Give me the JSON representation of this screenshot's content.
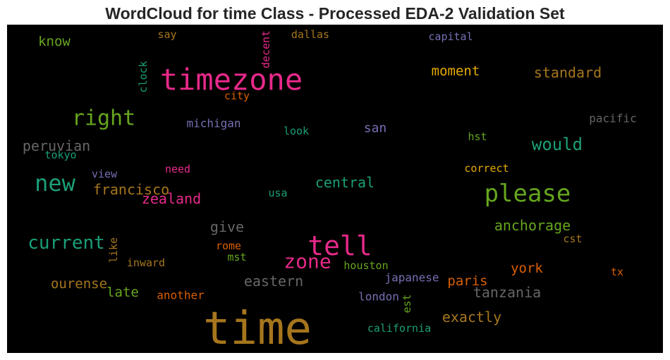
{
  "chart_data": {
    "type": "wordcloud",
    "title": "WordCloud for time Class - Processed EDA-2 Validation Set",
    "background": "#000000",
    "words": [
      {
        "text": "time",
        "size": 64,
        "color": "#a6761d"
      },
      {
        "text": "timezone",
        "size": 42,
        "color": "#e7298a"
      },
      {
        "text": "tell",
        "size": 38,
        "color": "#e7298a"
      },
      {
        "text": "please",
        "size": 34,
        "color": "#66a61e"
      },
      {
        "text": "new",
        "size": 32,
        "color": "#1b9e77"
      },
      {
        "text": "right",
        "size": 30,
        "color": "#66a61e"
      },
      {
        "text": "zone",
        "size": 28,
        "color": "#e7298a"
      },
      {
        "text": "current",
        "size": 26,
        "color": "#1b9e77"
      },
      {
        "text": "would",
        "size": 24,
        "color": "#1b9e77"
      },
      {
        "text": "peruvian",
        "size": 20,
        "color": "#666666"
      },
      {
        "text": "francisco",
        "size": 20,
        "color": "#a6761d"
      },
      {
        "text": "zealand",
        "size": 20,
        "color": "#e7298a"
      },
      {
        "text": "central",
        "size": 20,
        "color": "#1b9e77"
      },
      {
        "text": "anchorage",
        "size": 20,
        "color": "#66a61e"
      },
      {
        "text": "standard",
        "size": 20,
        "color": "#a6761d"
      },
      {
        "text": "exactly",
        "size": 20,
        "color": "#a6761d"
      },
      {
        "text": "eastern",
        "size": 20,
        "color": "#666666"
      },
      {
        "text": "tanzania",
        "size": 20,
        "color": "#666666"
      },
      {
        "text": "give",
        "size": 20,
        "color": "#666666"
      },
      {
        "text": "know",
        "size": 19,
        "color": "#66a61e"
      },
      {
        "text": "moment",
        "size": 19,
        "color": "#e6ab02"
      },
      {
        "text": "late",
        "size": 19,
        "color": "#66a61e"
      },
      {
        "text": "ourense",
        "size": 19,
        "color": "#a6761d"
      },
      {
        "text": "york",
        "size": 19,
        "color": "#d95f02"
      },
      {
        "text": "paris",
        "size": 19,
        "color": "#d95f02"
      },
      {
        "text": "san",
        "size": 18,
        "color": "#7570b3"
      },
      {
        "text": "michigan",
        "size": 16,
        "color": "#7570b3"
      },
      {
        "text": "pacific",
        "size": 16,
        "color": "#666666"
      },
      {
        "text": "japanese",
        "size": 16,
        "color": "#7570b3"
      },
      {
        "text": "london",
        "size": 16,
        "color": "#7570b3"
      },
      {
        "text": "another",
        "size": 16,
        "color": "#d95f02"
      },
      {
        "text": "houston",
        "size": 15,
        "color": "#66a61e"
      },
      {
        "text": "california",
        "size": 15,
        "color": "#1b9e77"
      },
      {
        "text": "capital",
        "size": 15,
        "color": "#7570b3"
      },
      {
        "text": "dallas",
        "size": 15,
        "color": "#a6761d"
      },
      {
        "text": "say",
        "size": 15,
        "color": "#a6761d"
      },
      {
        "text": "city",
        "size": 15,
        "color": "#d95f02"
      },
      {
        "text": "look",
        "size": 15,
        "color": "#1b9e77"
      },
      {
        "text": "hst",
        "size": 15,
        "color": "#66a61e"
      },
      {
        "text": "tokyo",
        "size": 15,
        "color": "#1b9e77"
      },
      {
        "text": "view",
        "size": 15,
        "color": "#7570b3"
      },
      {
        "text": "need",
        "size": 15,
        "color": "#e7298a"
      },
      {
        "text": "correct",
        "size": 15,
        "color": "#e6ab02"
      },
      {
        "text": "usa",
        "size": 15,
        "color": "#1b9e77"
      },
      {
        "text": "inward",
        "size": 15,
        "color": "#a6761d"
      },
      {
        "text": "rome",
        "size": 15,
        "color": "#d95f02"
      },
      {
        "text": "mst",
        "size": 15,
        "color": "#66a61e"
      },
      {
        "text": "cst",
        "size": 15,
        "color": "#a6761d"
      },
      {
        "text": "tx",
        "size": 15,
        "color": "#d95f02"
      },
      {
        "text": "clock",
        "size": 15,
        "color": "#1b9e77",
        "vertical": true
      },
      {
        "text": "decent",
        "size": 15,
        "color": "#e7298a",
        "vertical": true
      },
      {
        "text": "like",
        "size": 15,
        "color": "#a6761d",
        "vertical": true
      },
      {
        "text": "est",
        "size": 15,
        "color": "#66a61e",
        "vertical": true
      }
    ]
  }
}
